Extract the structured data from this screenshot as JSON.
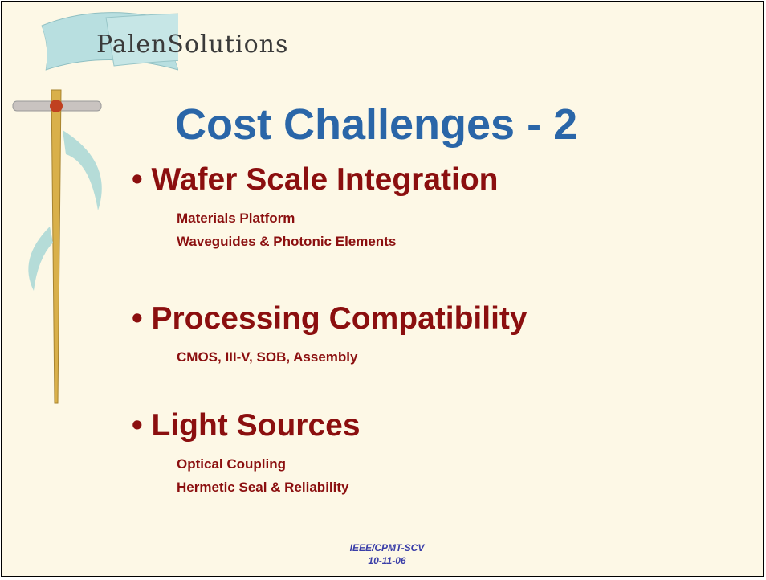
{
  "header": {
    "logo": "PalenSolutions",
    "title": "Cost Challenges - 2"
  },
  "bullets": [
    {
      "text": "• Wafer Scale Integration",
      "subs": [
        "Materials Platform",
        "Waveguides & Photonic Elements"
      ]
    },
    {
      "text": "• Processing Compatibility",
      "subs": [
        "CMOS, III-V, SOB, Assembly"
      ]
    },
    {
      "text": "• Light Sources",
      "subs": [
        "Optical Coupling",
        "Hermetic Seal & Reliability"
      ]
    }
  ],
  "footer": [
    "IEEE/CPMT-SCV",
    "10-11-06"
  ]
}
